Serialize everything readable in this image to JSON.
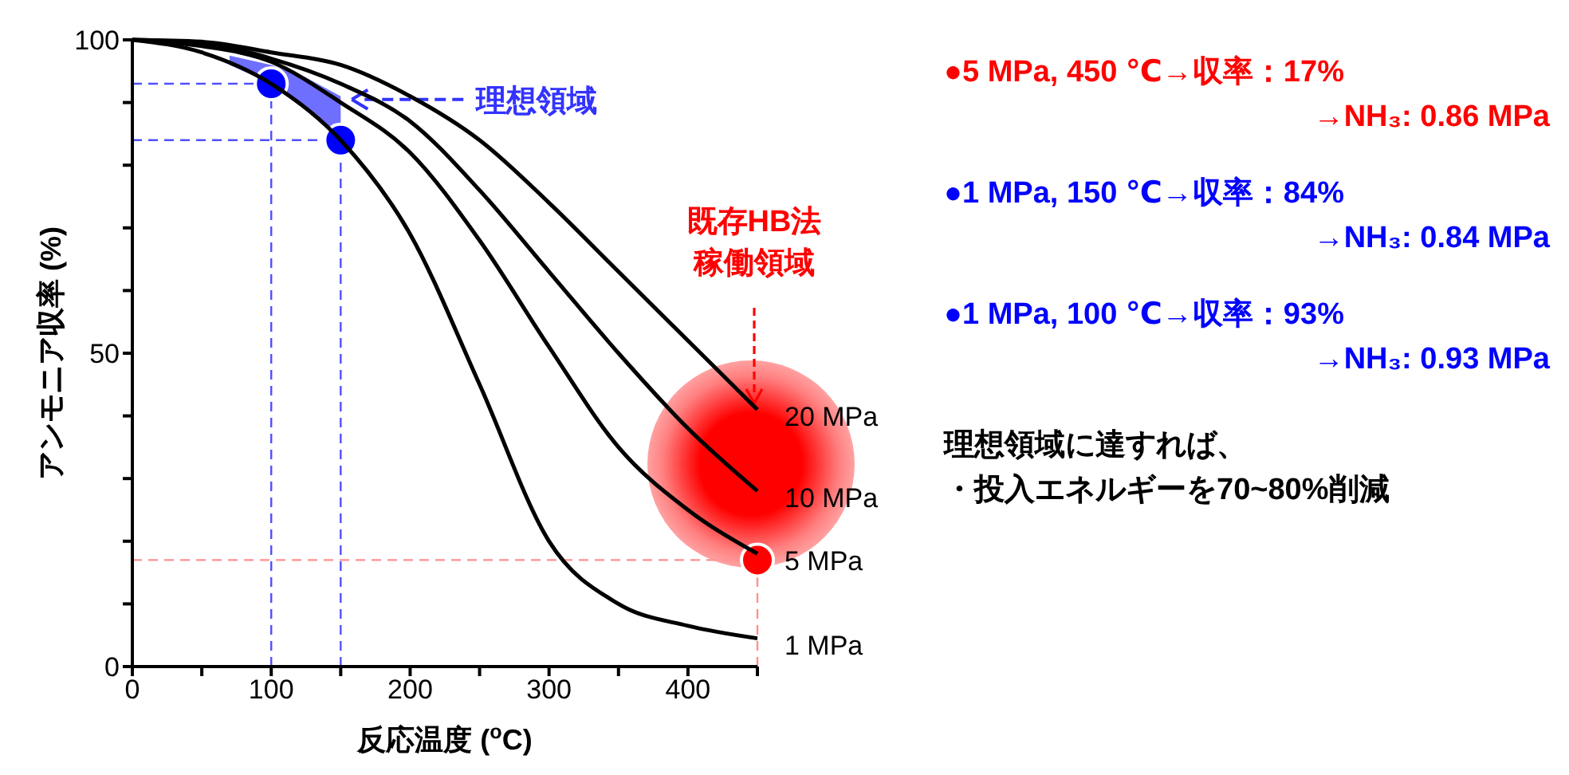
{
  "chart_data": {
    "type": "line",
    "xlabel": "反応温度 ($^{o}$C)",
    "ylabel": "アンモニア収率 (%)",
    "x": [
      0,
      50,
      100,
      150,
      200,
      250,
      300,
      350,
      400,
      450
    ],
    "xlim": [
      0,
      450
    ],
    "xticks": [
      0,
      {
        "value": 50,
        "label": null
      },
      100,
      {
        "value": 150,
        "label": null
      },
      200,
      {
        "value": 250,
        "label": null
      },
      300,
      {
        "value": 350,
        "label": null
      },
      400,
      {
        "value": 450,
        "label": null
      }
    ],
    "ylim": [
      0,
      100
    ],
    "yticks": [
      0,
      {
        "value": 10,
        "label": null
      },
      {
        "value": 20,
        "label": null
      },
      {
        "value": 30,
        "label": null
      },
      {
        "value": 40,
        "label": null
      },
      50,
      {
        "value": 60,
        "label": null
      },
      {
        "value": 70,
        "label": null
      },
      {
        "value": 80,
        "label": null
      },
      {
        "value": 90,
        "label": null
      },
      100
    ],
    "marker": "none",
    "line_style": "solid",
    "series": [
      {
        "type": "scatter",
        "marker": "circle",
        "x": [
          450,
          150,
          100
        ],
        "values": [
          17,
          84,
          93
        ],
        "colors": [
          "#ff0000",
          "#0000ff",
          "#0000ff"
        ]
      },
      {
        "name": "20 MPa",
        "color": "#000000",
        "values": [
          100,
          99.7,
          98,
          96,
          91,
          84,
          74,
          63,
          52,
          41
        ]
      },
      {
        "name": "10 MPa",
        "color": "#000000",
        "values": [
          100,
          99.5,
          97,
          93,
          87,
          76,
          63,
          50,
          38,
          28
        ]
      },
      {
        "name": "5 MPa",
        "color": "#000000",
        "values": [
          100,
          99,
          96.5,
          90,
          82,
          68,
          51,
          35,
          25,
          18
        ]
      },
      {
        "name": "1 MPa",
        "color": "#000000",
        "values": [
          100,
          98,
          93,
          84,
          69,
          45,
          20,
          10,
          6.5,
          4.5
        ]
      }
    ],
    "ref_lines": [
      {
        "axis": "y",
        "value": 93,
        "color": "#5050ff",
        "line_style": "dashed"
      },
      {
        "axis": "y",
        "value": 84,
        "color": "#5050ff",
        "line_style": "dashed"
      },
      {
        "axis": "y",
        "value": 17,
        "color": "#ff9090",
        "line_style": "dashed"
      },
      {
        "axis": "x",
        "value": 100,
        "color": "#5050ff",
        "line_style": "dashed"
      },
      {
        "axis": "x",
        "value": 150,
        "color": "#5050ff",
        "line_style": "dashed"
      },
      {
        "axis": "x",
        "value": 450,
        "color": "#ff9090",
        "line_style": "dashed"
      }
    ],
    "annotations": [
      {
        "text": "理想領域",
        "x": 158,
        "y": 90.5
      },
      {
        "text": "既存HB法稼働領域",
        "x": 450,
        "y": 42
      },
      "●5 MPa, 450 ℃→収率：17%",
      "→NH₃: 0.86 MPa",
      "●1 MPa, 150 ℃→収率：84%",
      "→NH₃: 0.84 MPa",
      "●1 MPa, 100 ℃→収率：93%",
      "→NH₃: 0.93 MPa",
      "理想領域に達すれば、",
      "・投入エネルギーを70~80%削減"
    ]
  }
}
